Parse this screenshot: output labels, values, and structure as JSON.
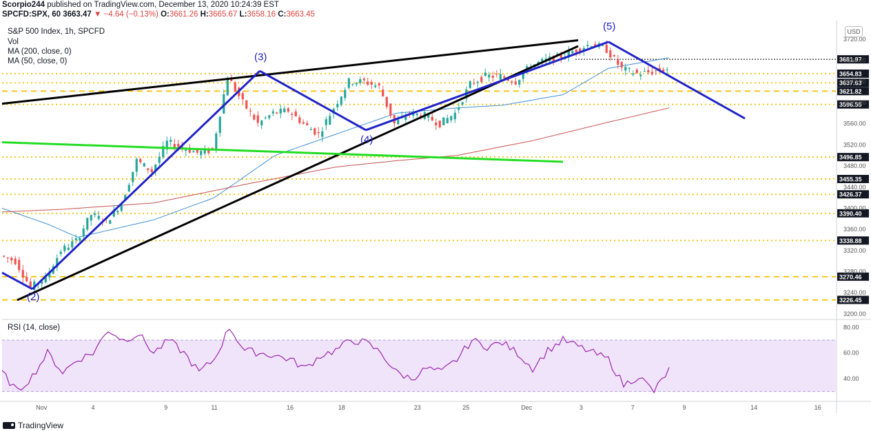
{
  "header": {
    "line1": {
      "user": "Scorpio244",
      "text": "published on TradingView.com, December 13, 2020 10:24:39 EST"
    },
    "line2": {
      "symbol": "SPCFD:SPX, 60",
      "last": "3663.47",
      "change": "−4.64 (−0.13%)",
      "o_label": "O:",
      "o": "3661.26",
      "h_label": "H:",
      "h": "3665.67",
      "l_label": "L:",
      "l": "3658.16",
      "c_label": "C:",
      "c": "3663.45"
    }
  },
  "legend": {
    "title": "S&P 500 Index, 1h, SPCFD",
    "vol": "Vol",
    "ma200": "MA (200, close, 0)",
    "ma50": "MA (50, close, 0)",
    "rsi": "RSI (14, close)"
  },
  "currency": "USD",
  "footer": {
    "brand": "TradingView"
  },
  "colors": {
    "up": "#26a69a",
    "down": "#ef5350",
    "trend_blue": "#1f22c9",
    "trend_black": "#000000",
    "trend_green": "#22dd22",
    "ma50": "#3d8fd6",
    "ma200": "#c8514f",
    "level": "#f5c518",
    "rsi_line": "#9c27b0",
    "rsi_band": "#efe4fa",
    "tag": "#131722"
  },
  "chart_data": [
    {
      "type": "candlestick",
      "title": "S&P 500 Index, 1h, SPCFD",
      "x_ticks": [
        "Nov",
        "4",
        "9",
        "11",
        "16",
        "18",
        "23",
        "25",
        "Dec",
        "3",
        "7",
        "9",
        "14",
        "16"
      ],
      "y_ticks": [
        3200,
        3240,
        3280,
        3320,
        3360,
        3400,
        3440,
        3480,
        3520,
        3560,
        3600,
        3640,
        3680,
        3720
      ],
      "ylim": [
        3192,
        3750
      ],
      "price_anchors": [
        [
          0,
          3310
        ],
        [
          1,
          3300
        ],
        [
          2,
          3250
        ],
        [
          3,
          3268
        ],
        [
          4,
          3320
        ],
        [
          5,
          3338
        ],
        [
          6,
          3388
        ],
        [
          7,
          3375
        ],
        [
          8,
          3410
        ],
        [
          9,
          3490
        ],
        [
          10,
          3470
        ],
        [
          11,
          3525
        ],
        [
          12,
          3515
        ],
        [
          13,
          3505
        ],
        [
          14,
          3510
        ],
        [
          15,
          3650
        ],
        [
          16,
          3600
        ],
        [
          17,
          3560
        ],
        [
          18,
          3580
        ],
        [
          19,
          3585
        ],
        [
          20,
          3560
        ],
        [
          21,
          3540
        ],
        [
          22,
          3590
        ],
        [
          23,
          3640
        ],
        [
          24,
          3640
        ],
        [
          25,
          3630
        ],
        [
          26,
          3560
        ],
        [
          27,
          3580
        ],
        [
          28,
          3575
        ],
        [
          29,
          3560
        ],
        [
          30,
          3580
        ],
        [
          31,
          3635
        ],
        [
          32,
          3650
        ],
        [
          33,
          3650
        ],
        [
          34,
          3640
        ],
        [
          35,
          3670
        ],
        [
          36,
          3680
        ],
        [
          37,
          3688
        ],
        [
          38,
          3700
        ],
        [
          39,
          3712
        ],
        [
          40,
          3700
        ],
        [
          41,
          3664
        ],
        [
          42,
          3655
        ],
        [
          43,
          3658
        ],
        [
          44,
          3664
        ]
      ],
      "ma50_anchors": [
        [
          0,
          3400
        ],
        [
          3,
          3370
        ],
        [
          5,
          3345
        ],
        [
          10,
          3378
        ],
        [
          14,
          3420
        ],
        [
          18,
          3500
        ],
        [
          22,
          3540
        ],
        [
          26,
          3580
        ],
        [
          30,
          3590
        ],
        [
          33,
          3595
        ],
        [
          37,
          3615
        ],
        [
          40,
          3665
        ],
        [
          44,
          3685
        ]
      ],
      "ma200_anchors": [
        [
          0,
          3393
        ],
        [
          4,
          3398
        ],
        [
          10,
          3410
        ],
        [
          16,
          3445
        ],
        [
          22,
          3478
        ],
        [
          26,
          3490
        ],
        [
          30,
          3500
        ],
        [
          35,
          3528
        ],
        [
          40,
          3563
        ],
        [
          44,
          3590
        ]
      ],
      "trend_lines": [
        {
          "color": "black",
          "from": [
            0,
            3598
          ],
          "to": [
            38,
            3718
          ]
        },
        {
          "color": "black",
          "from": [
            1,
            3226
          ],
          "to": [
            38,
            3707
          ]
        },
        {
          "color": "green",
          "from": [
            0,
            3525
          ],
          "to": [
            37,
            3488
          ]
        },
        {
          "color": "blue",
          "from": [
            0,
            3278
          ],
          "to": [
            2,
            3247
          ]
        },
        {
          "color": "blue",
          "from": [
            2,
            3247
          ],
          "to": [
            17,
            3660
          ]
        },
        {
          "color": "blue",
          "from": [
            17,
            3660
          ],
          "to": [
            24,
            3548
          ]
        },
        {
          "color": "blue",
          "from": [
            24,
            3548
          ],
          "to": [
            40,
            3715
          ]
        },
        {
          "color": "blue",
          "from": [
            40,
            3715
          ],
          "to": [
            49,
            3570
          ]
        }
      ],
      "wave_labels": [
        {
          "label": "(2)",
          "x": 2,
          "y": 3226
        },
        {
          "label": "(3)",
          "x": 17,
          "y": 3680
        },
        {
          "label": "(4)",
          "x": 24,
          "y": 3524
        },
        {
          "label": "(5)",
          "x": 40,
          "y": 3738
        }
      ],
      "levels": [
        {
          "value": 3681.97,
          "label": "3681.97",
          "style": "dotted-black"
        },
        {
          "value": 3654.83,
          "label": "3654.83"
        },
        {
          "value": 3637.63,
          "label": "3637.63"
        },
        {
          "value": 3621.82,
          "label": "3621.82",
          "style": "dashed"
        },
        {
          "value": 3596.55,
          "label": "3596.55"
        },
        {
          "value": 3496.85,
          "label": "3496.85"
        },
        {
          "value": 3455.35,
          "label": "3455.35"
        },
        {
          "value": 3426.37,
          "label": "3426.37"
        },
        {
          "value": 3390.4,
          "label": "3390.40"
        },
        {
          "value": 3338.88,
          "label": "3338.88"
        },
        {
          "value": 3270.46,
          "label": "3270.46",
          "style": "dashed"
        },
        {
          "value": 3226.45,
          "label": "3226.45",
          "style": "dashed"
        }
      ]
    },
    {
      "type": "line",
      "title": "RSI (14, close)",
      "y_ticks": [
        40,
        60,
        80
      ],
      "ylim": [
        25,
        85
      ],
      "band": [
        30,
        70
      ],
      "anchors": [
        [
          0,
          45
        ],
        [
          1,
          30
        ],
        [
          2,
          42
        ],
        [
          3,
          60
        ],
        [
          4,
          45
        ],
        [
          5,
          55
        ],
        [
          6,
          60
        ],
        [
          7,
          78
        ],
        [
          8,
          70
        ],
        [
          9,
          75
        ],
        [
          10,
          60
        ],
        [
          11,
          70
        ],
        [
          12,
          60
        ],
        [
          13,
          45
        ],
        [
          14,
          55
        ],
        [
          15,
          80
        ],
        [
          16,
          62
        ],
        [
          17,
          60
        ],
        [
          18,
          58
        ],
        [
          19,
          55
        ],
        [
          20,
          48
        ],
        [
          21,
          58
        ],
        [
          22,
          62
        ],
        [
          23,
          70
        ],
        [
          24,
          68
        ],
        [
          25,
          60
        ],
        [
          26,
          45
        ],
        [
          27,
          40
        ],
        [
          28,
          48
        ],
        [
          29,
          45
        ],
        [
          30,
          55
        ],
        [
          31,
          70
        ],
        [
          32,
          65
        ],
        [
          33,
          68
        ],
        [
          34,
          60
        ],
        [
          35,
          48
        ],
        [
          36,
          62
        ],
        [
          37,
          70
        ],
        [
          38,
          65
        ],
        [
          39,
          60
        ],
        [
          40,
          55
        ],
        [
          41,
          35
        ],
        [
          42,
          42
        ],
        [
          43,
          30
        ],
        [
          44,
          47
        ]
      ]
    }
  ]
}
